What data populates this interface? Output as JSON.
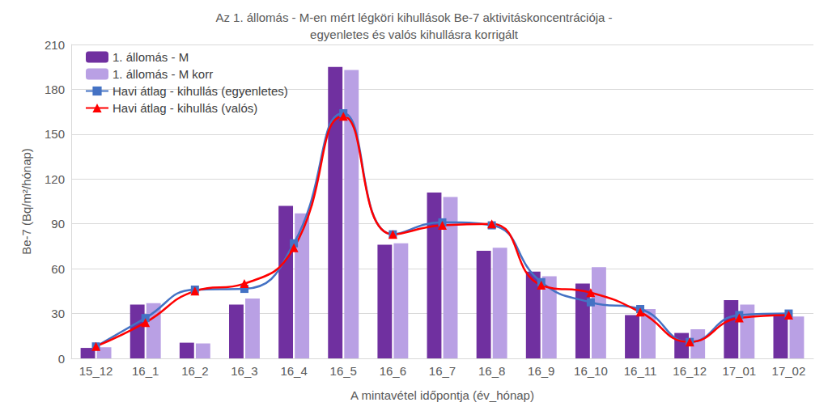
{
  "chart_data": {
    "type": "bar",
    "title": "Az 1. állomás - M-en mért légköri kihullások Be-7 aktivitáskoncentrációja -\negyenletes és valós kihullásra korrigált",
    "x_label": "A mintavétel időpontja (év_hónap)",
    "y_label": "Be-7 (Bq/m²/hónap)",
    "categories": [
      "15_12",
      "16_1",
      "16_2",
      "16_3",
      "16_4",
      "16_5",
      "16_6",
      "16_7",
      "16_8",
      "16_9",
      "16_10",
      "16_11",
      "16_12",
      "17_01",
      "17_02"
    ],
    "series": [
      {
        "name": "1. állomás - M",
        "type": "bar",
        "color": "#7030a0",
        "values": [
          7,
          36,
          10.5,
          36,
          102,
          195,
          76,
          111,
          72,
          58,
          50,
          29,
          17,
          39,
          30
        ]
      },
      {
        "name": "1. állomás - M korr",
        "type": "bar",
        "color": "#b9a0e4",
        "values": [
          7.5,
          37,
          10,
          40,
          97,
          193,
          77,
          108,
          74,
          55,
          61,
          33,
          19.5,
          36,
          28
        ]
      },
      {
        "name": "Havi átlag - kihullás (egyenletes)",
        "type": "line",
        "color": "#4472c4",
        "marker": "square",
        "line_style": "smooth",
        "values": [
          8,
          27,
          46,
          46.5,
          77,
          164,
          83,
          91,
          89,
          51,
          37.5,
          33,
          11,
          29,
          30
        ]
      },
      {
        "name": "Havi átlag - kihullás (valós)",
        "type": "line",
        "color": "#ff0000",
        "marker": "triangle",
        "line_style": "smooth",
        "values": [
          8,
          24,
          45,
          50,
          74,
          162,
          83,
          89,
          90,
          49,
          44,
          31,
          11,
          27,
          29
        ]
      }
    ],
    "ylim": [
      0,
      210
    ],
    "yticks": [
      0,
      30,
      60,
      90,
      120,
      150,
      180,
      210
    ],
    "grid": true,
    "legend": "top-left"
  }
}
